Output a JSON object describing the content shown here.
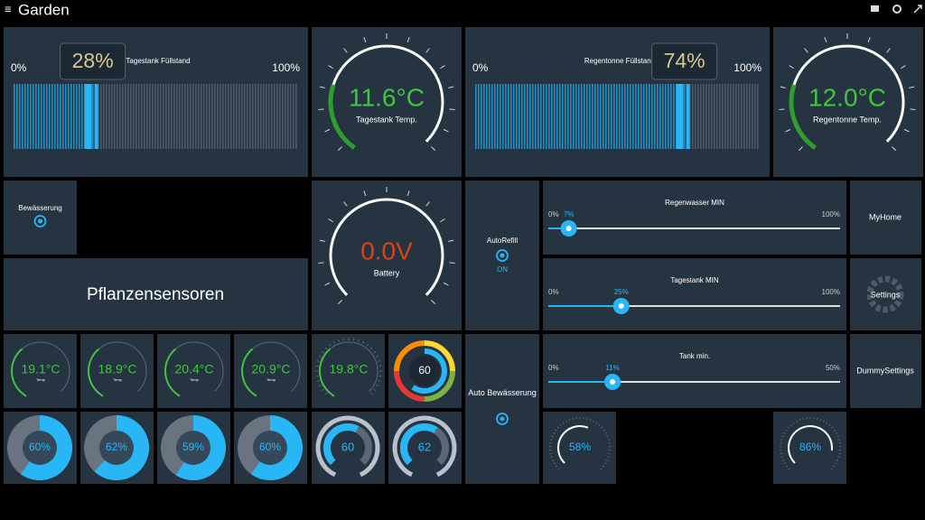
{
  "header": {
    "title": "Garden"
  },
  "levels": [
    {
      "title": "Tagestank Füllstand",
      "min": {
        "value": 0,
        "label": "0%"
      },
      "max": {
        "value": 100,
        "label": "100%"
      },
      "value": {
        "value": 28,
        "label": "28%"
      }
    },
    {
      "title": "Regentonne Füllstand",
      "min": {
        "value": 0,
        "label": "0%"
      },
      "max": {
        "value": 100,
        "label": "100%"
      },
      "value": {
        "value": 74,
        "label": "74%"
      }
    }
  ],
  "temperatures": [
    {
      "value": "11.6°C",
      "label": "Tagestank Temp."
    },
    {
      "value": "12.0°C",
      "label": "Regentonne Temp."
    }
  ],
  "battery": {
    "value": "0.0V",
    "label": "Battery"
  },
  "switches": [
    {
      "label": "Bewässerung"
    },
    {
      "label": "AutoRefill",
      "state": "ON"
    },
    {
      "label": "Auto Bewässerung"
    }
  ],
  "section": "Pflanzensensoren",
  "sliders": [
    {
      "title": "Regenwasser MIN",
      "min": {
        "value": 0,
        "label": "0%"
      },
      "max": {
        "value": 100,
        "label": "100%"
      },
      "value": {
        "value": 7,
        "label": "7%"
      }
    },
    {
      "title": "Tagestank MIN",
      "min": {
        "value": 0,
        "label": "0%"
      },
      "max": {
        "value": 100,
        "label": "100%"
      },
      "value": {
        "value": 25,
        "label": "25%"
      }
    },
    {
      "title": "Tank min.",
      "min": {
        "value": 0,
        "label": "0%"
      },
      "max": {
        "value": 50,
        "label": "50%"
      },
      "value": {
        "value": 11,
        "label": "11%"
      }
    }
  ],
  "buttons": [
    "MyHome",
    "Settings",
    "DummySettings"
  ],
  "sensor_temps": [
    {
      "value": "19.1°C",
      "label": "Temp"
    },
    {
      "value": "18.9°C",
      "label": "Temp"
    },
    {
      "value": "20.4°C",
      "label": "Temp"
    },
    {
      "value": "20.9°C",
      "label": "Temp"
    },
    {
      "value": "19.8°C"
    }
  ],
  "combo": 60,
  "moisture": [
    {
      "value": 60,
      "label": "60%"
    },
    {
      "value": 62,
      "label": "62%"
    },
    {
      "value": 59,
      "label": "59%"
    },
    {
      "value": 60,
      "label": "60%"
    }
  ],
  "rings": [
    60,
    62
  ],
  "dials": [
    {
      "value": 58,
      "label": "58%"
    },
    {
      "value": 86,
      "label": "86%"
    }
  ]
}
